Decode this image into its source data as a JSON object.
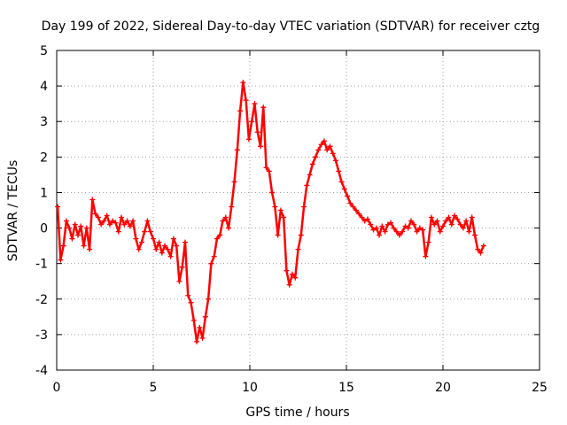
{
  "chart_data": {
    "type": "scatter",
    "title": "Day 199 of 2022, Sidereal Day-to-day VTEC variation (SDTVAR) for receiver cztg",
    "xlabel": "GPS time / hours",
    "ylabel": "SDTVAR / TECUs",
    "xlim": [
      0,
      25
    ],
    "ylim": [
      -4,
      5
    ],
    "xticks": [
      0,
      5,
      10,
      15,
      20,
      25
    ],
    "yticks": [
      -4,
      -3,
      -2,
      -1,
      0,
      1,
      2,
      3,
      4,
      5
    ],
    "grid": true,
    "marker": "+",
    "color": "#ff0000",
    "series": [
      {
        "name": "SDTVAR",
        "x": [
          0.05,
          0.2,
          0.35,
          0.5,
          0.65,
          0.8,
          0.95,
          1.1,
          1.25,
          1.4,
          1.55,
          1.7,
          1.85,
          2.0,
          2.15,
          2.3,
          2.45,
          2.6,
          2.75,
          2.9,
          3.05,
          3.2,
          3.35,
          3.5,
          3.65,
          3.8,
          3.95,
          4.1,
          4.25,
          4.4,
          4.55,
          4.7,
          4.85,
          5.0,
          5.15,
          5.3,
          5.45,
          5.6,
          5.75,
          5.9,
          6.05,
          6.2,
          6.35,
          6.5,
          6.65,
          6.8,
          6.95,
          7.1,
          7.25,
          7.4,
          7.55,
          7.7,
          7.85,
          8.0,
          8.15,
          8.3,
          8.45,
          8.6,
          8.75,
          8.9,
          9.05,
          9.2,
          9.35,
          9.5,
          9.65,
          9.8,
          9.95,
          10.1,
          10.25,
          10.4,
          10.55,
          10.7,
          10.85,
          11.0,
          11.15,
          11.3,
          11.45,
          11.6,
          11.75,
          11.9,
          12.05,
          12.2,
          12.35,
          12.5,
          12.65,
          12.8,
          12.95,
          13.1,
          13.25,
          13.4,
          13.55,
          13.7,
          13.85,
          14.0,
          14.15,
          14.3,
          14.45,
          14.6,
          14.75,
          14.9,
          15.05,
          15.2,
          15.35,
          15.5,
          15.65,
          15.8,
          15.95,
          16.1,
          16.25,
          16.4,
          16.55,
          16.7,
          16.85,
          17.0,
          17.15,
          17.3,
          17.45,
          17.6,
          17.75,
          17.9,
          18.05,
          18.2,
          18.35,
          18.5,
          18.65,
          18.8,
          18.95,
          19.1,
          19.25,
          19.4,
          19.55,
          19.7,
          19.85,
          20.0,
          20.15,
          20.3,
          20.45,
          20.6,
          20.75,
          20.9,
          21.05,
          21.2,
          21.35,
          21.5,
          21.65,
          21.8,
          21.95,
          22.1
        ],
        "y": [
          0.6,
          -0.9,
          -0.5,
          0.2,
          0.0,
          -0.3,
          0.1,
          -0.2,
          0.05,
          -0.5,
          0.0,
          -0.6,
          0.8,
          0.4,
          0.3,
          0.1,
          0.2,
          0.35,
          0.1,
          0.2,
          0.15,
          -0.1,
          0.3,
          0.1,
          0.2,
          0.05,
          0.2,
          -0.3,
          -0.6,
          -0.4,
          -0.1,
          0.2,
          -0.1,
          -0.3,
          -0.6,
          -0.4,
          -0.7,
          -0.5,
          -0.6,
          -0.8,
          -0.3,
          -0.5,
          -1.5,
          -1.1,
          -0.4,
          -1.9,
          -2.1,
          -2.6,
          -3.2,
          -2.8,
          -3.1,
          -2.5,
          -2.0,
          -1.0,
          -0.8,
          -0.3,
          -0.2,
          0.2,
          0.3,
          0.0,
          0.6,
          1.3,
          2.2,
          3.3,
          4.1,
          3.6,
          2.5,
          3.0,
          3.5,
          2.7,
          2.3,
          3.4,
          1.7,
          1.6,
          1.0,
          0.6,
          -0.2,
          0.5,
          0.3,
          -1.2,
          -1.6,
          -1.3,
          -1.4,
          -0.6,
          -0.2,
          0.6,
          1.2,
          1.5,
          1.8,
          2.0,
          2.2,
          2.35,
          2.45,
          2.2,
          2.3,
          2.1,
          1.9,
          1.6,
          1.3,
          1.1,
          0.9,
          0.7,
          0.6,
          0.5,
          0.4,
          0.3,
          0.2,
          0.25,
          0.1,
          -0.05,
          0.0,
          -0.2,
          0.05,
          -0.1,
          0.1,
          0.15,
          0.0,
          -0.1,
          -0.2,
          -0.1,
          0.05,
          0.0,
          0.2,
          0.1,
          -0.1,
          0.0,
          -0.05,
          -0.8,
          -0.4,
          0.3,
          0.1,
          0.2,
          -0.1,
          0.05,
          0.2,
          0.3,
          0.1,
          0.35,
          0.25,
          0.1,
          0.0,
          0.2,
          -0.1,
          0.3,
          -0.2,
          -0.6,
          -0.7,
          -0.5
        ]
      }
    ]
  }
}
